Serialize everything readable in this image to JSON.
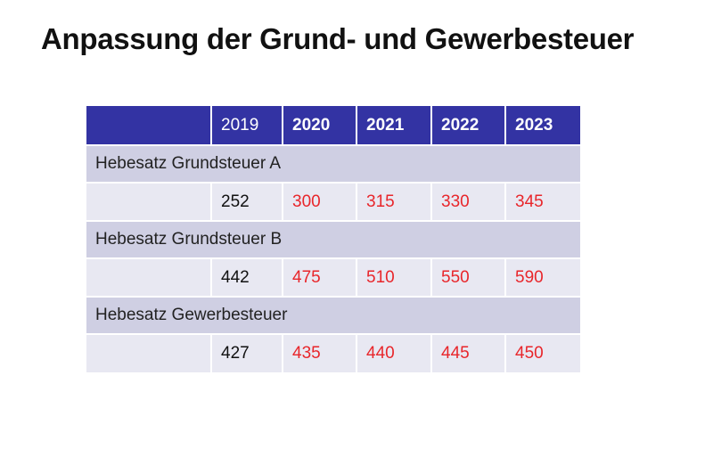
{
  "slide": {
    "title": "Anpassung der Grund- und Gewerbesteuer"
  },
  "table": {
    "header": {
      "corner": "",
      "years": [
        "2019",
        "2020",
        "2021",
        "2022",
        "2023"
      ]
    },
    "groups": [
      {
        "label": "Hebesatz Grundsteuer A",
        "values": [
          "252",
          "300",
          "315",
          "330",
          "345"
        ]
      },
      {
        "label": "Hebesatz Grundsteuer B",
        "values": [
          "442",
          "475",
          "510",
          "550",
          "590"
        ]
      },
      {
        "label": "Hebesatz Gewerbesteuer",
        "values": [
          "427",
          "435",
          "440",
          "445",
          "450"
        ]
      }
    ]
  },
  "colors": {
    "header_background": "#3333a3",
    "label_row_background": "#cfcfe3",
    "value_row_background": "#e8e8f2",
    "new_value_text": "#e8262b",
    "old_value_text": "#111111"
  }
}
